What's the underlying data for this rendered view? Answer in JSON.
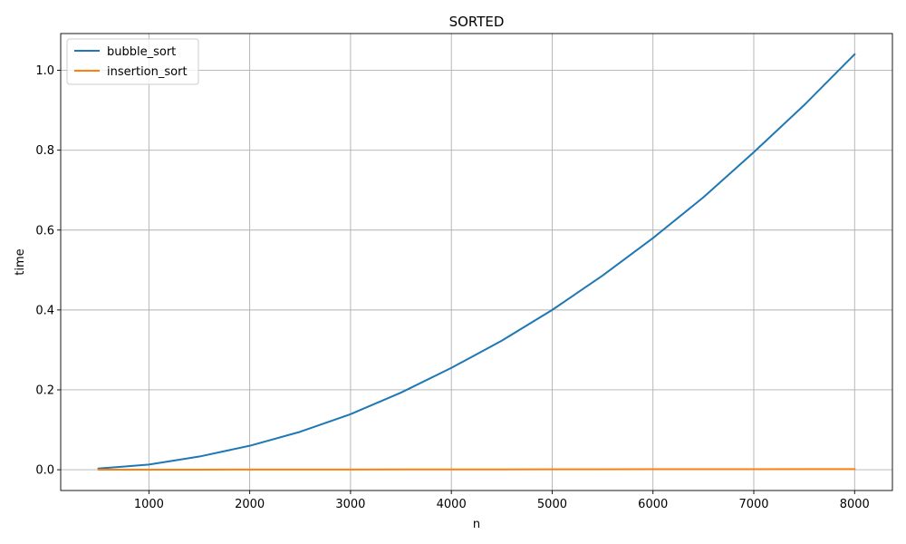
{
  "chart_data": {
    "type": "line",
    "title": "SORTED",
    "xlabel": "n",
    "ylabel": "time",
    "xlim": [
      125,
      8375
    ],
    "ylim": [
      -0.052,
      1.092
    ],
    "xticks": [
      1000,
      2000,
      3000,
      4000,
      5000,
      6000,
      7000,
      8000
    ],
    "yticks": [
      0.0,
      0.2,
      0.4,
      0.6,
      0.8,
      1.0
    ],
    "ytick_labels": [
      "0.0",
      "0.2",
      "0.4",
      "0.6",
      "0.8",
      "1.0"
    ],
    "grid": true,
    "legend_position": "upper-left",
    "x": [
      500,
      1000,
      1500,
      2000,
      2500,
      3000,
      3500,
      4000,
      4500,
      5000,
      5500,
      6000,
      6500,
      7000,
      7500,
      8000
    ],
    "series": [
      {
        "name": "bubble_sort",
        "color": "#1f77b4",
        "values": [
          0.003,
          0.013,
          0.033,
          0.06,
          0.095,
          0.139,
          0.193,
          0.255,
          0.323,
          0.4,
          0.486,
          0.58,
          0.682,
          0.795,
          0.913,
          1.04
        ]
      },
      {
        "name": "insertion_sort",
        "color": "#ff7f0e",
        "values": [
          0.0001,
          0.0002,
          0.0003,
          0.0004,
          0.0005,
          0.0006,
          0.0007,
          0.0008,
          0.0009,
          0.001,
          0.0011,
          0.0012,
          0.0013,
          0.0014,
          0.0015,
          0.0016
        ]
      }
    ]
  }
}
